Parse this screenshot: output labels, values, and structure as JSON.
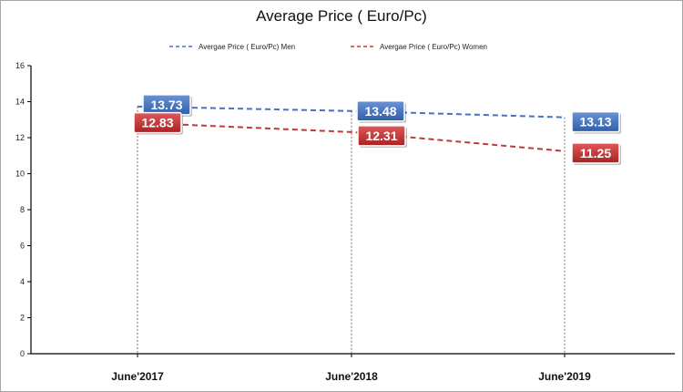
{
  "chart_data": {
    "type": "line",
    "title": "Average Price ( Euro/Pc)",
    "categories": [
      "June'2017",
      "June'2018",
      "June'2019"
    ],
    "series": [
      {
        "name": "Avergae Price  ( Euro/Pc) Men",
        "values": [
          13.73,
          13.48,
          13.13
        ],
        "color": "#4472c4"
      },
      {
        "name": "Avergae Price  ( Euro/Pc) Women",
        "values": [
          12.83,
          12.31,
          11.25
        ],
        "color": "#c0393b"
      }
    ],
    "data_labels": [
      [
        "13.73",
        "13.48",
        "13.13"
      ],
      [
        "12.83",
        "12.31",
        "11.25"
      ]
    ],
    "yticks": [
      "0",
      "2",
      "4",
      "6",
      "8",
      "10",
      "12",
      "14",
      "16"
    ],
    "ylim": [
      0,
      16
    ],
    "line_style": "dashed",
    "legend_position": "top",
    "grid": false
  }
}
